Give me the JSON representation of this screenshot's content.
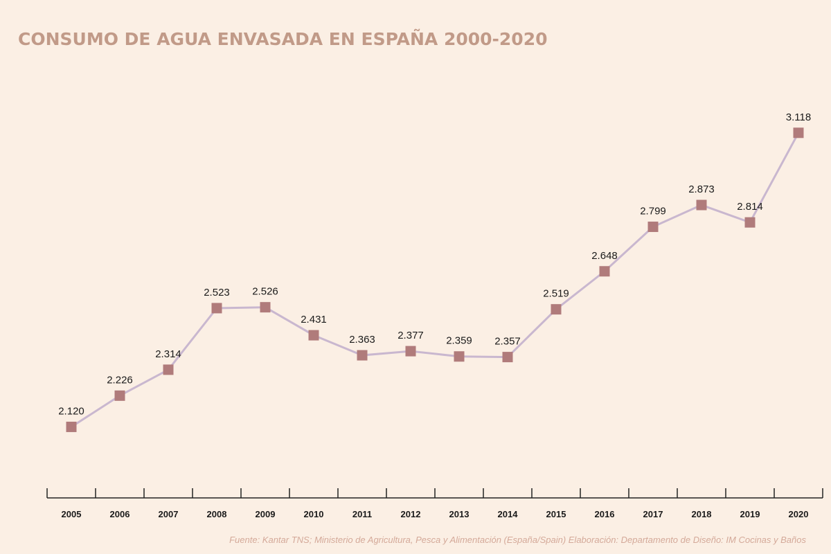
{
  "chart_data": {
    "type": "line",
    "title": "CONSUMO DE AGUA ENVASADA EN ESPAÑA 2000-2020",
    "x": [
      "2005",
      "2006",
      "2007",
      "2008",
      "2009",
      "2010",
      "2011",
      "2012",
      "2013",
      "2014",
      "2015",
      "2016",
      "2017",
      "2018",
      "2019",
      "2020"
    ],
    "series": [
      {
        "values": [
          2120,
          2226,
          2314,
          2523,
          2526,
          2431,
          2363,
          2377,
          2359,
          2357,
          2519,
          2648,
          2799,
          2873,
          2814,
          3118
        ],
        "labels": [
          "2.120",
          "2.226",
          "2.314",
          "2.523",
          "2.526",
          "2.431",
          "2.363",
          "2.377",
          "2.359",
          "2.357",
          "2.519",
          "2.648",
          "2.799",
          "2.873",
          "2.814",
          "3.118"
        ]
      }
    ],
    "xlabel": "",
    "ylabel": "",
    "grid": false,
    "colors": {
      "line": "#c9b7cf",
      "marker": "#b07b7b",
      "axis": "#222222"
    }
  },
  "footer": {
    "source": "Fuente: Kantar TNS; Ministerio de Agricultura, Pesca y Alimentación (España/Spain)  Elaboración: Departamento de Diseño: IM Cocinas y Baños"
  }
}
